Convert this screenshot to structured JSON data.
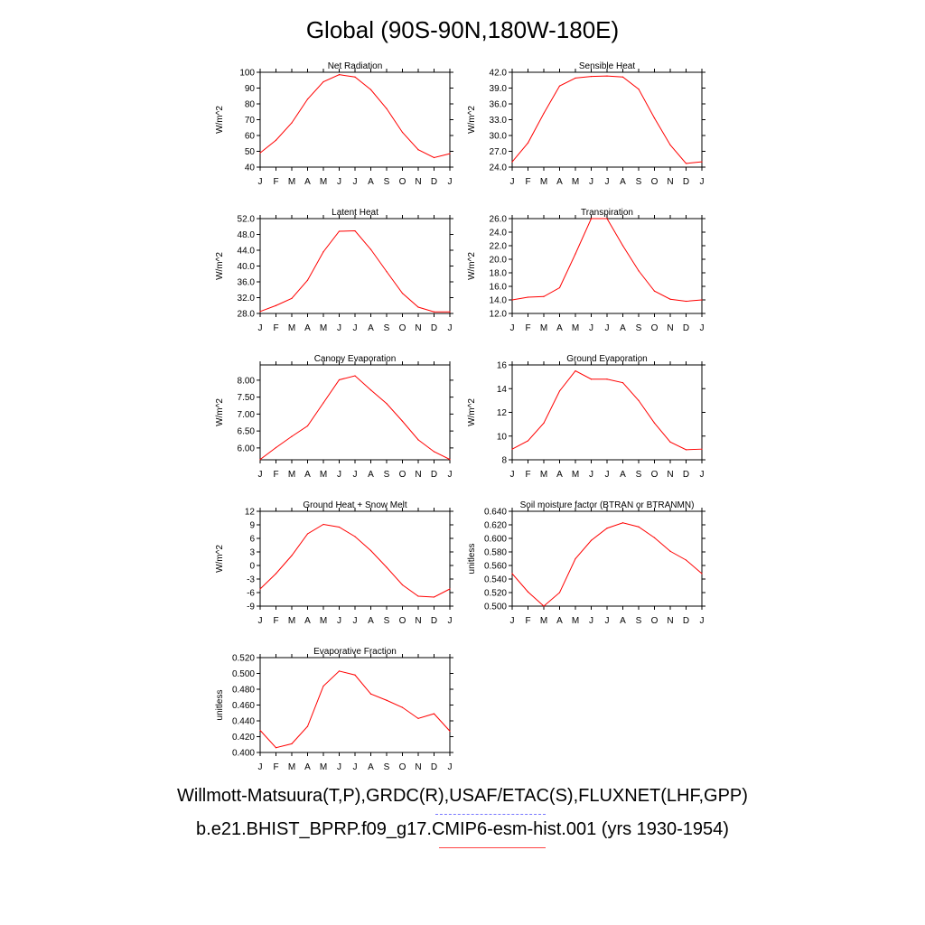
{
  "title": "Global (90S-90N,180W-180E)",
  "legend": {
    "obs": "Willmott-Matsuura(T,P),GRDC(R),USAF/ETAC(S),FLUXNET(LHF,GPP)",
    "model": "b.e21.BHIST_BPRP.f09_g17.CMIP6-esm-hist.001 (yrs 1930-1954)",
    "obs_color": "#0000ff",
    "model_color": "#ff0000"
  },
  "chart_data": [
    {
      "type": "line",
      "title": "Net Radiation",
      "ylabel": "W/m^2",
      "categories": [
        "J",
        "F",
        "M",
        "A",
        "M",
        "J",
        "J",
        "A",
        "S",
        "O",
        "N",
        "D",
        "J"
      ],
      "ylim": [
        40,
        100
      ],
      "yticks": [
        "40",
        "50",
        "60",
        "70",
        "80",
        "90",
        "100"
      ],
      "series": [
        {
          "values": [
            49,
            57,
            68,
            83,
            94,
            98.5,
            97,
            89,
            77,
            62,
            51,
            46,
            48.5
          ]
        }
      ]
    },
    {
      "type": "line",
      "title": "Sensible Heat",
      "ylabel": "W/m^2",
      "categories": [
        "J",
        "F",
        "M",
        "A",
        "M",
        "J",
        "J",
        "A",
        "S",
        "O",
        "N",
        "D",
        "J"
      ],
      "ylim": [
        24,
        42
      ],
      "yticks": [
        "24.0",
        "27.0",
        "30.0",
        "33.0",
        "36.0",
        "39.0",
        "42.0"
      ],
      "series": [
        {
          "values": [
            25,
            28.6,
            34.2,
            39.4,
            40.9,
            41.2,
            41.3,
            41.1,
            38.8,
            33.3,
            28.2,
            24.7,
            25
          ]
        }
      ]
    },
    {
      "type": "line",
      "title": "Latent Heat",
      "ylabel": "W/m^2",
      "categories": [
        "J",
        "F",
        "M",
        "A",
        "M",
        "J",
        "J",
        "A",
        "S",
        "O",
        "N",
        "D",
        "J"
      ],
      "ylim": [
        28,
        52
      ],
      "yticks": [
        "28.0",
        "32.0",
        "36.0",
        "40.0",
        "44.0",
        "48.0",
        "52.0"
      ],
      "series": [
        {
          "values": [
            28.5,
            30,
            31.8,
            36.4,
            43.6,
            48.8,
            48.9,
            44.2,
            38.6,
            33.1,
            29.6,
            28.4,
            28.4
          ]
        }
      ]
    },
    {
      "type": "line",
      "title": "Transpiration",
      "ylabel": "W/m^2",
      "categories": [
        "J",
        "F",
        "M",
        "A",
        "M",
        "J",
        "J",
        "A",
        "S",
        "O",
        "N",
        "D",
        "J"
      ],
      "ylim": [
        12,
        26
      ],
      "yticks": [
        "12.0",
        "14.0",
        "16.0",
        "18.0",
        "20.0",
        "22.0",
        "24.0",
        "26.0"
      ],
      "series": [
        {
          "values": [
            14,
            14.4,
            14.5,
            15.8,
            20.8,
            26,
            26,
            22,
            18.3,
            15.3,
            14.1,
            13.8,
            14
          ]
        }
      ]
    },
    {
      "type": "line",
      "title": "Canopy Evaporation",
      "ylabel": "W/m^2",
      "categories": [
        "J",
        "F",
        "M",
        "A",
        "M",
        "J",
        "J",
        "A",
        "S",
        "O",
        "N",
        "D",
        "J"
      ],
      "ylim": [
        5.65,
        8.45
      ],
      "yticks": [
        "6.00",
        "6.50",
        "7.00",
        "7.50",
        "8.00"
      ],
      "series": [
        {
          "values": [
            5.66,
            6.01,
            6.34,
            6.65,
            7.33,
            8.01,
            8.13,
            7.71,
            7.31,
            6.79,
            6.24,
            5.89,
            5.66
          ]
        }
      ]
    },
    {
      "type": "line",
      "title": "Ground Evaporation",
      "ylabel": "W/m^2",
      "categories": [
        "J",
        "F",
        "M",
        "A",
        "M",
        "J",
        "J",
        "A",
        "S",
        "O",
        "N",
        "D",
        "J"
      ],
      "ylim": [
        8,
        16
      ],
      "yticks": [
        "8",
        "10",
        "12",
        "14",
        "16"
      ],
      "series": [
        {
          "values": [
            8.9,
            9.6,
            11.1,
            13.8,
            15.5,
            14.8,
            14.8,
            14.5,
            13,
            11.1,
            9.5,
            8.85,
            8.9
          ]
        }
      ]
    },
    {
      "type": "line",
      "title": "Ground Heat + Snow Melt",
      "ylabel": "W/m^2",
      "categories": [
        "J",
        "F",
        "M",
        "A",
        "M",
        "J",
        "J",
        "A",
        "S",
        "O",
        "N",
        "D",
        "J"
      ],
      "ylim": [
        -9,
        12
      ],
      "yticks": [
        "-9",
        "-6",
        "-3",
        "0",
        "3",
        "6",
        "9",
        "12"
      ],
      "series": [
        {
          "values": [
            -5.2,
            -1.8,
            2.2,
            7,
            9.1,
            8.5,
            6.4,
            3.3,
            -0.4,
            -4.3,
            -6.8,
            -7,
            -5.2
          ]
        }
      ]
    },
    {
      "type": "line",
      "title": "Soil moisture factor (BTRAN or BTRANMN)",
      "ylabel": "unitless",
      "categories": [
        "J",
        "F",
        "M",
        "A",
        "M",
        "J",
        "J",
        "A",
        "S",
        "O",
        "N",
        "D",
        "J"
      ],
      "ylim": [
        0.5,
        0.64
      ],
      "yticks": [
        "0.500",
        "0.520",
        "0.540",
        "0.560",
        "0.580",
        "0.600",
        "0.620",
        "0.640"
      ],
      "series": [
        {
          "values": [
            0.548,
            0.521,
            0.5,
            0.52,
            0.57,
            0.597,
            0.615,
            0.623,
            0.617,
            0.601,
            0.581,
            0.568,
            0.548
          ]
        }
      ]
    },
    {
      "type": "line",
      "title": "Evaporative Fraction",
      "ylabel": "unitless",
      "categories": [
        "J",
        "F",
        "M",
        "A",
        "M",
        "J",
        "J",
        "A",
        "S",
        "O",
        "N",
        "D",
        "J"
      ],
      "ylim": [
        0.4,
        0.52
      ],
      "yticks": [
        "0.400",
        "0.420",
        "0.440",
        "0.460",
        "0.480",
        "0.500",
        "0.520"
      ],
      "series": [
        {
          "values": [
            0.428,
            0.406,
            0.411,
            0.433,
            0.484,
            0.503,
            0.498,
            0.474,
            0.466,
            0.457,
            0.443,
            0.449,
            0.427
          ]
        }
      ]
    }
  ]
}
